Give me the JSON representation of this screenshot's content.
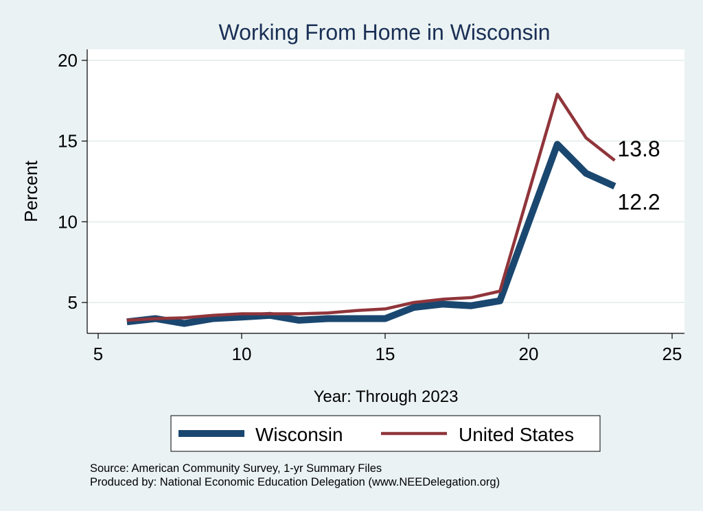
{
  "chart_data": {
    "type": "line",
    "title": "Working From Home in Wisconsin",
    "xlabel": "Year: Through 2023",
    "ylabel": "Percent",
    "xlim": [
      5,
      25
    ],
    "ylim": [
      3.2,
      20.7
    ],
    "xticks": [
      5,
      10,
      15,
      20,
      25
    ],
    "yticks": [
      5,
      10,
      15,
      20
    ],
    "grid": true,
    "legend_position": "bottom",
    "x": [
      6,
      7,
      8,
      9,
      10,
      11,
      12,
      13,
      14,
      15,
      16,
      17,
      18,
      19,
      21,
      22,
      23
    ],
    "series": [
      {
        "name": "Wisconsin",
        "color": "#1a476f",
        "values": [
          3.8,
          4.0,
          3.7,
          4.0,
          4.1,
          4.2,
          3.9,
          4.0,
          4.0,
          4.0,
          4.7,
          4.9,
          4.8,
          5.1,
          14.8,
          13.0,
          12.2
        ],
        "end_label": "12.2"
      },
      {
        "name": "United States",
        "color": "#90353b",
        "values": [
          3.9,
          4.0,
          4.05,
          4.2,
          4.3,
          4.3,
          4.3,
          4.35,
          4.5,
          4.6,
          5.0,
          5.2,
          5.3,
          5.7,
          17.9,
          15.2,
          13.8
        ],
        "end_label": "13.8"
      }
    ]
  },
  "source_note": "Source: American Community Survey, 1-yr Summary Files",
  "produced_note": "Produced by: National Economic Education Delegation (www.NEEDelegation.org)"
}
